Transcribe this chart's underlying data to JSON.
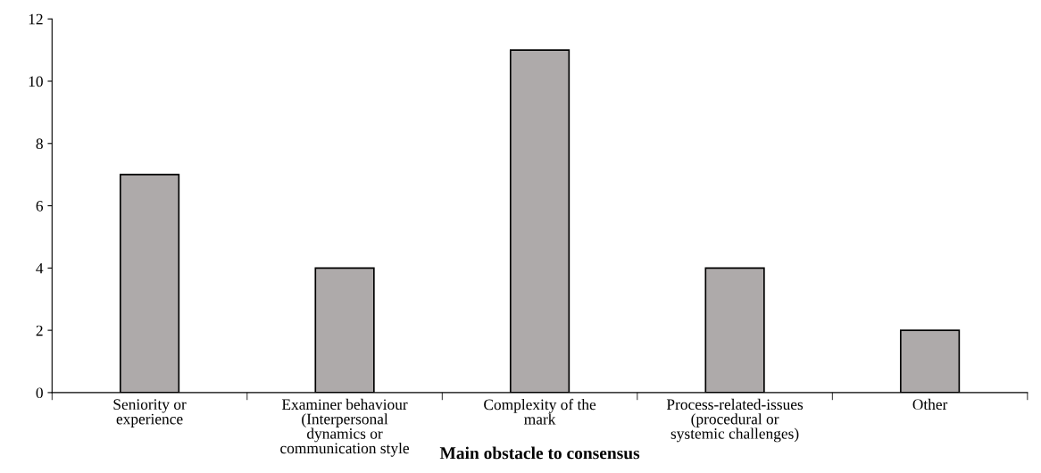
{
  "chart_data": {
    "type": "bar",
    "xlabel": "Main obstacle to consensus",
    "categories": [
      "Seniority or\nexperience",
      "Examiner behaviour\n(Interpersonal\ndynamics or\ncommunication style",
      "Complexity of the\nmark",
      "Process-related-issues\n(procedural or\nsystemic challenges)",
      "Other"
    ],
    "values": [
      7,
      4,
      11,
      4,
      2
    ],
    "color": "#aeaaaa",
    "ylim": [
      0,
      12
    ],
    "yticks": [
      0,
      2,
      4,
      6,
      8,
      10,
      12
    ],
    "grid": false,
    "legend": false
  }
}
